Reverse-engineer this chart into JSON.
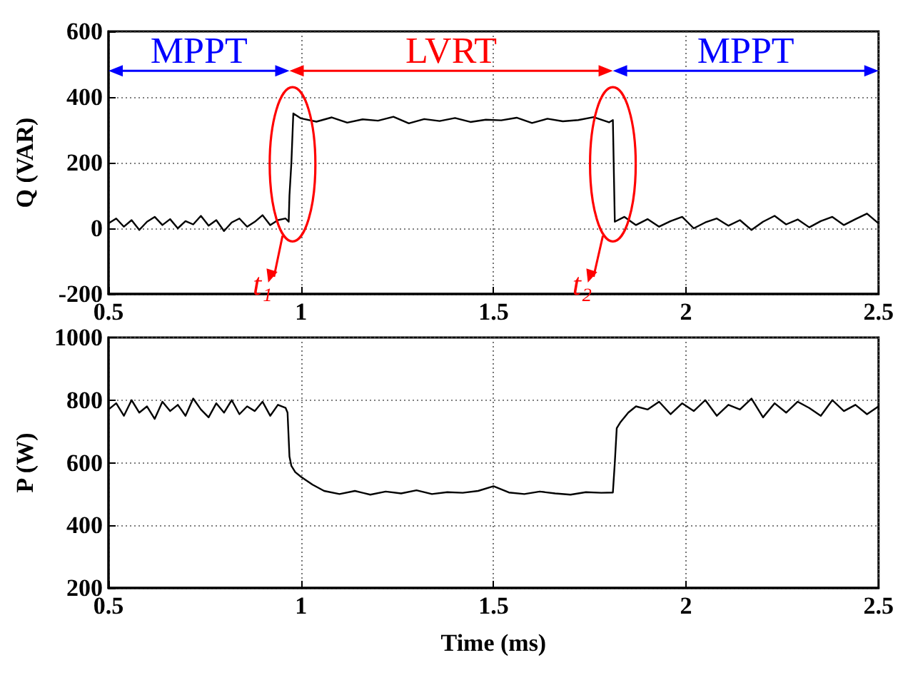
{
  "chart_data": [
    {
      "type": "line",
      "ylabel": "Q (VAR)",
      "xlim": [
        0.5,
        2.5
      ],
      "xticks": [
        0.5,
        1,
        1.5,
        2,
        2.5
      ],
      "ylim": [
        -200,
        600
      ],
      "yticks": [
        -200,
        0,
        200,
        400,
        600
      ],
      "grid": true,
      "marker": "none",
      "x": [
        0.5,
        0.52,
        0.54,
        0.56,
        0.58,
        0.6,
        0.62,
        0.64,
        0.66,
        0.68,
        0.7,
        0.72,
        0.74,
        0.76,
        0.78,
        0.8,
        0.82,
        0.84,
        0.86,
        0.88,
        0.9,
        0.92,
        0.94,
        0.96,
        0.968,
        0.97,
        0.975,
        0.98,
        1.0,
        1.04,
        1.08,
        1.12,
        1.16,
        1.2,
        1.24,
        1.28,
        1.32,
        1.36,
        1.4,
        1.44,
        1.48,
        1.52,
        1.56,
        1.6,
        1.64,
        1.68,
        1.72,
        1.76,
        1.8,
        1.81,
        1.815,
        1.84,
        1.87,
        1.9,
        1.93,
        1.96,
        1.99,
        2.02,
        2.05,
        2.08,
        2.11,
        2.14,
        2.17,
        2.2,
        2.23,
        2.26,
        2.29,
        2.32,
        2.35,
        2.38,
        2.41,
        2.44,
        2.47,
        2.5
      ],
      "series": [
        {
          "color": "#000000",
          "values": [
            15,
            30,
            5,
            25,
            -5,
            20,
            35,
            10,
            28,
            0,
            22,
            12,
            38,
            8,
            25,
            -8,
            18,
            30,
            5,
            20,
            40,
            10,
            25,
            30,
            20,
            100,
            200,
            350,
            335,
            325,
            338,
            322,
            332,
            328,
            340,
            320,
            333,
            327,
            336,
            324,
            331,
            329,
            337,
            321,
            334,
            326,
            330,
            339,
            323,
            330,
            20,
            35,
            10,
            28,
            5,
            22,
            35,
            0,
            18,
            30,
            8,
            25,
            -5,
            20,
            38,
            12,
            27,
            3,
            22,
            35,
            10,
            28,
            45,
            15
          ]
        }
      ],
      "annotations": [
        "MPPT",
        "LVRT",
        "MPPT",
        "t₁",
        "t₂"
      ]
    },
    {
      "type": "line",
      "xlabel": "Time (ms)",
      "ylabel": "P (W)",
      "xlim": [
        0.5,
        2.5
      ],
      "xticks": [
        0.5,
        1,
        1.5,
        2,
        2.5
      ],
      "ylim": [
        200,
        1000
      ],
      "yticks": [
        200,
        400,
        600,
        800,
        1000
      ],
      "grid": true,
      "marker": "none",
      "x": [
        0.5,
        0.52,
        0.54,
        0.56,
        0.58,
        0.6,
        0.62,
        0.64,
        0.66,
        0.68,
        0.7,
        0.72,
        0.74,
        0.76,
        0.78,
        0.8,
        0.82,
        0.84,
        0.86,
        0.88,
        0.9,
        0.92,
        0.94,
        0.96,
        0.965,
        0.97,
        0.975,
        0.985,
        1.0,
        1.03,
        1.06,
        1.1,
        1.14,
        1.18,
        1.22,
        1.26,
        1.3,
        1.34,
        1.38,
        1.42,
        1.46,
        1.5,
        1.54,
        1.58,
        1.62,
        1.66,
        1.7,
        1.74,
        1.78,
        1.81,
        1.815,
        1.82,
        1.83,
        1.85,
        1.87,
        1.9,
        1.93,
        1.96,
        1.99,
        2.02,
        2.05,
        2.08,
        2.11,
        2.14,
        2.17,
        2.2,
        2.23,
        2.26,
        2.29,
        2.32,
        2.35,
        2.38,
        2.41,
        2.44,
        2.47,
        2.5
      ],
      "series": [
        {
          "color": "#000000",
          "values": [
            770,
            790,
            750,
            800,
            760,
            780,
            740,
            795,
            765,
            785,
            750,
            805,
            770,
            745,
            790,
            760,
            800,
            755,
            780,
            765,
            795,
            750,
            785,
            775,
            760,
            620,
            590,
            570,
            555,
            530,
            510,
            500,
            510,
            498,
            508,
            502,
            512,
            500,
            506,
            504,
            510,
            525,
            505,
            500,
            508,
            502,
            498,
            506,
            504,
            505,
            600,
            710,
            730,
            760,
            780,
            770,
            795,
            755,
            790,
            765,
            800,
            750,
            785,
            770,
            805,
            745,
            790,
            760,
            795,
            775,
            750,
            800,
            765,
            785,
            755,
            780
          ]
        }
      ]
    }
  ]
}
